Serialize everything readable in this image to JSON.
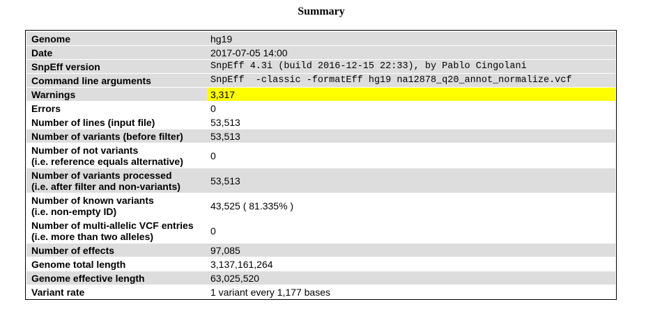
{
  "title": "Summary",
  "colors": {
    "row_shade": "#dddddd",
    "warning_highlight": "#ffff00",
    "border": "#000000"
  },
  "rows": [
    {
      "key": [
        "Genome"
      ],
      "value": "hg19",
      "shade": true
    },
    {
      "key": [
        "Date"
      ],
      "value": "2017-07-05 14:00",
      "shade": true
    },
    {
      "key": [
        "SnpEff version"
      ],
      "value": "SnpEff 4.3i (build 2016-12-15 22:33), by Pablo Cingolani",
      "shade": true,
      "mono": true
    },
    {
      "key": [
        "Command line arguments"
      ],
      "value": "SnpEff  -classic -formatEff hg19 na12878_q20_annot_normalize.vcf",
      "shade": true,
      "mono": true
    },
    {
      "key": [
        "Warnings"
      ],
      "value": "3,317",
      "shade": true,
      "highlight": true
    },
    {
      "key": [
        "Errors"
      ],
      "value": "0",
      "shade": false
    },
    {
      "key": [
        "Number of lines (input file)"
      ],
      "value": "53,513",
      "shade": false
    },
    {
      "key": [
        "Number of variants (before filter)"
      ],
      "value": "53,513",
      "shade": true
    },
    {
      "key": [
        "Number of not variants",
        "(i.e. reference equals alternative)"
      ],
      "value": "0",
      "shade": false
    },
    {
      "key": [
        "Number of variants processed",
        "(i.e. after filter and non-variants)"
      ],
      "value": "53,513",
      "shade": true
    },
    {
      "key": [
        "Number of known variants",
        "(i.e. non-empty ID)"
      ],
      "value": "43,525 ( 81.335% )",
      "shade": false
    },
    {
      "key": [
        "Number of multi-allelic VCF entries",
        "(i.e. more than two alleles)"
      ],
      "value": "0",
      "shade": false
    },
    {
      "key": [
        "Number of effects"
      ],
      "value": "97,085",
      "shade": true
    },
    {
      "key": [
        "Genome total length"
      ],
      "value": "3,137,161,264",
      "shade": false
    },
    {
      "key": [
        "Genome effective length"
      ],
      "value": "63,025,520",
      "shade": true
    },
    {
      "key": [
        "Variant rate"
      ],
      "value": "1 variant every 1,177 bases",
      "shade": false
    }
  ]
}
